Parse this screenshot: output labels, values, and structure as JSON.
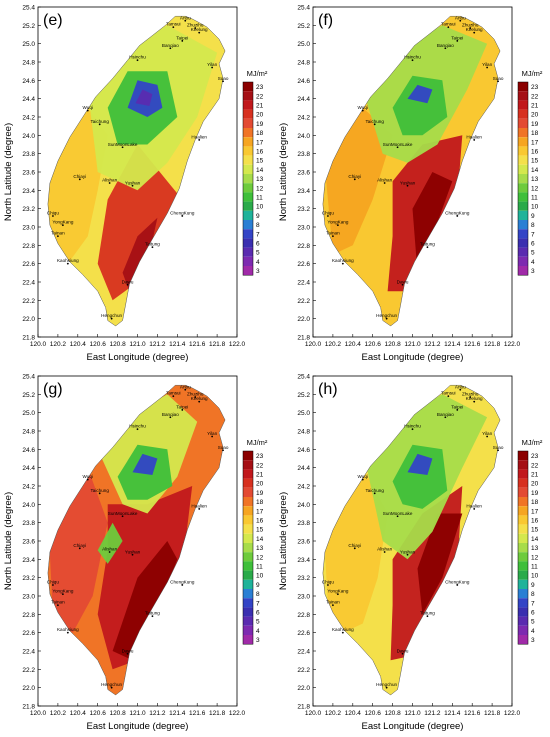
{
  "colorbar": {
    "unit": "MJ/m²",
    "ticks": [
      "23",
      "22",
      "21",
      "20",
      "19",
      "18",
      "17",
      "16",
      "15",
      "14",
      "13",
      "12",
      "11",
      "10",
      "9",
      "8",
      "7",
      "6",
      "5",
      "4",
      "3"
    ],
    "colors": [
      "#8b0000",
      "#a50f15",
      "#c1181c",
      "#d7301f",
      "#e34a33",
      "#f07426",
      "#f6a521",
      "#f9c831",
      "#f4e04a",
      "#d4e84d",
      "#a7dc4a",
      "#6ecb3c",
      "#3fbf3a",
      "#2aaa4a",
      "#1fb39a",
      "#2a7fd4",
      "#3344c6",
      "#3a2fb0",
      "#5a2bb0",
      "#7d2ab0",
      "#a02aa8"
    ]
  },
  "axes": {
    "xlabel": "East Longitude (degree)",
    "ylabel": "North Latitude (degree)",
    "xticks": [
      "120.0",
      "120.2",
      "120.4",
      "120.6",
      "120.8",
      "121.0",
      "121.2",
      "121.4",
      "121.6",
      "121.8",
      "122.0"
    ],
    "yticks": [
      "25.4",
      "25.2",
      "25.0",
      "24.8",
      "24.6",
      "24.4",
      "24.2",
      "24.0",
      "23.8",
      "23.6",
      "23.4",
      "23.2",
      "23.0",
      "22.8",
      "22.6",
      "22.4",
      "22.2",
      "22.0",
      "21.8"
    ]
  },
  "panels": [
    {
      "label": "(e)"
    },
    {
      "label": "(f)"
    },
    {
      "label": "(g)"
    },
    {
      "label": "(h)"
    }
  ],
  "places": {
    "anbu": "Anbu",
    "tamsui": "Tamsui",
    "zhuzihu": "Zhuzihu",
    "keelung": "Keelung",
    "taipei": "Taipei",
    "banqiao": "Banqiao",
    "hsinchu": "Hsinchu",
    "yilan": "Yilan",
    "suao": "Suao",
    "wuqi": "Wuqi",
    "taichung": "Taichung",
    "hualien": "Hualien",
    "sunmoonlake": "SunMoonLake",
    "chiayi": "Chiayi",
    "alishan": "Alishan",
    "yushan": "Yushan",
    "chenggung": "ChengKung",
    "chiqu": "Chiqu",
    "yongkang": "YongKang",
    "tainan": "Tainan",
    "taitung": "Taitung",
    "kaohsiung": "Kaohsiung",
    "dawu": "Dawu",
    "hengchun": "Hengchun"
  }
}
